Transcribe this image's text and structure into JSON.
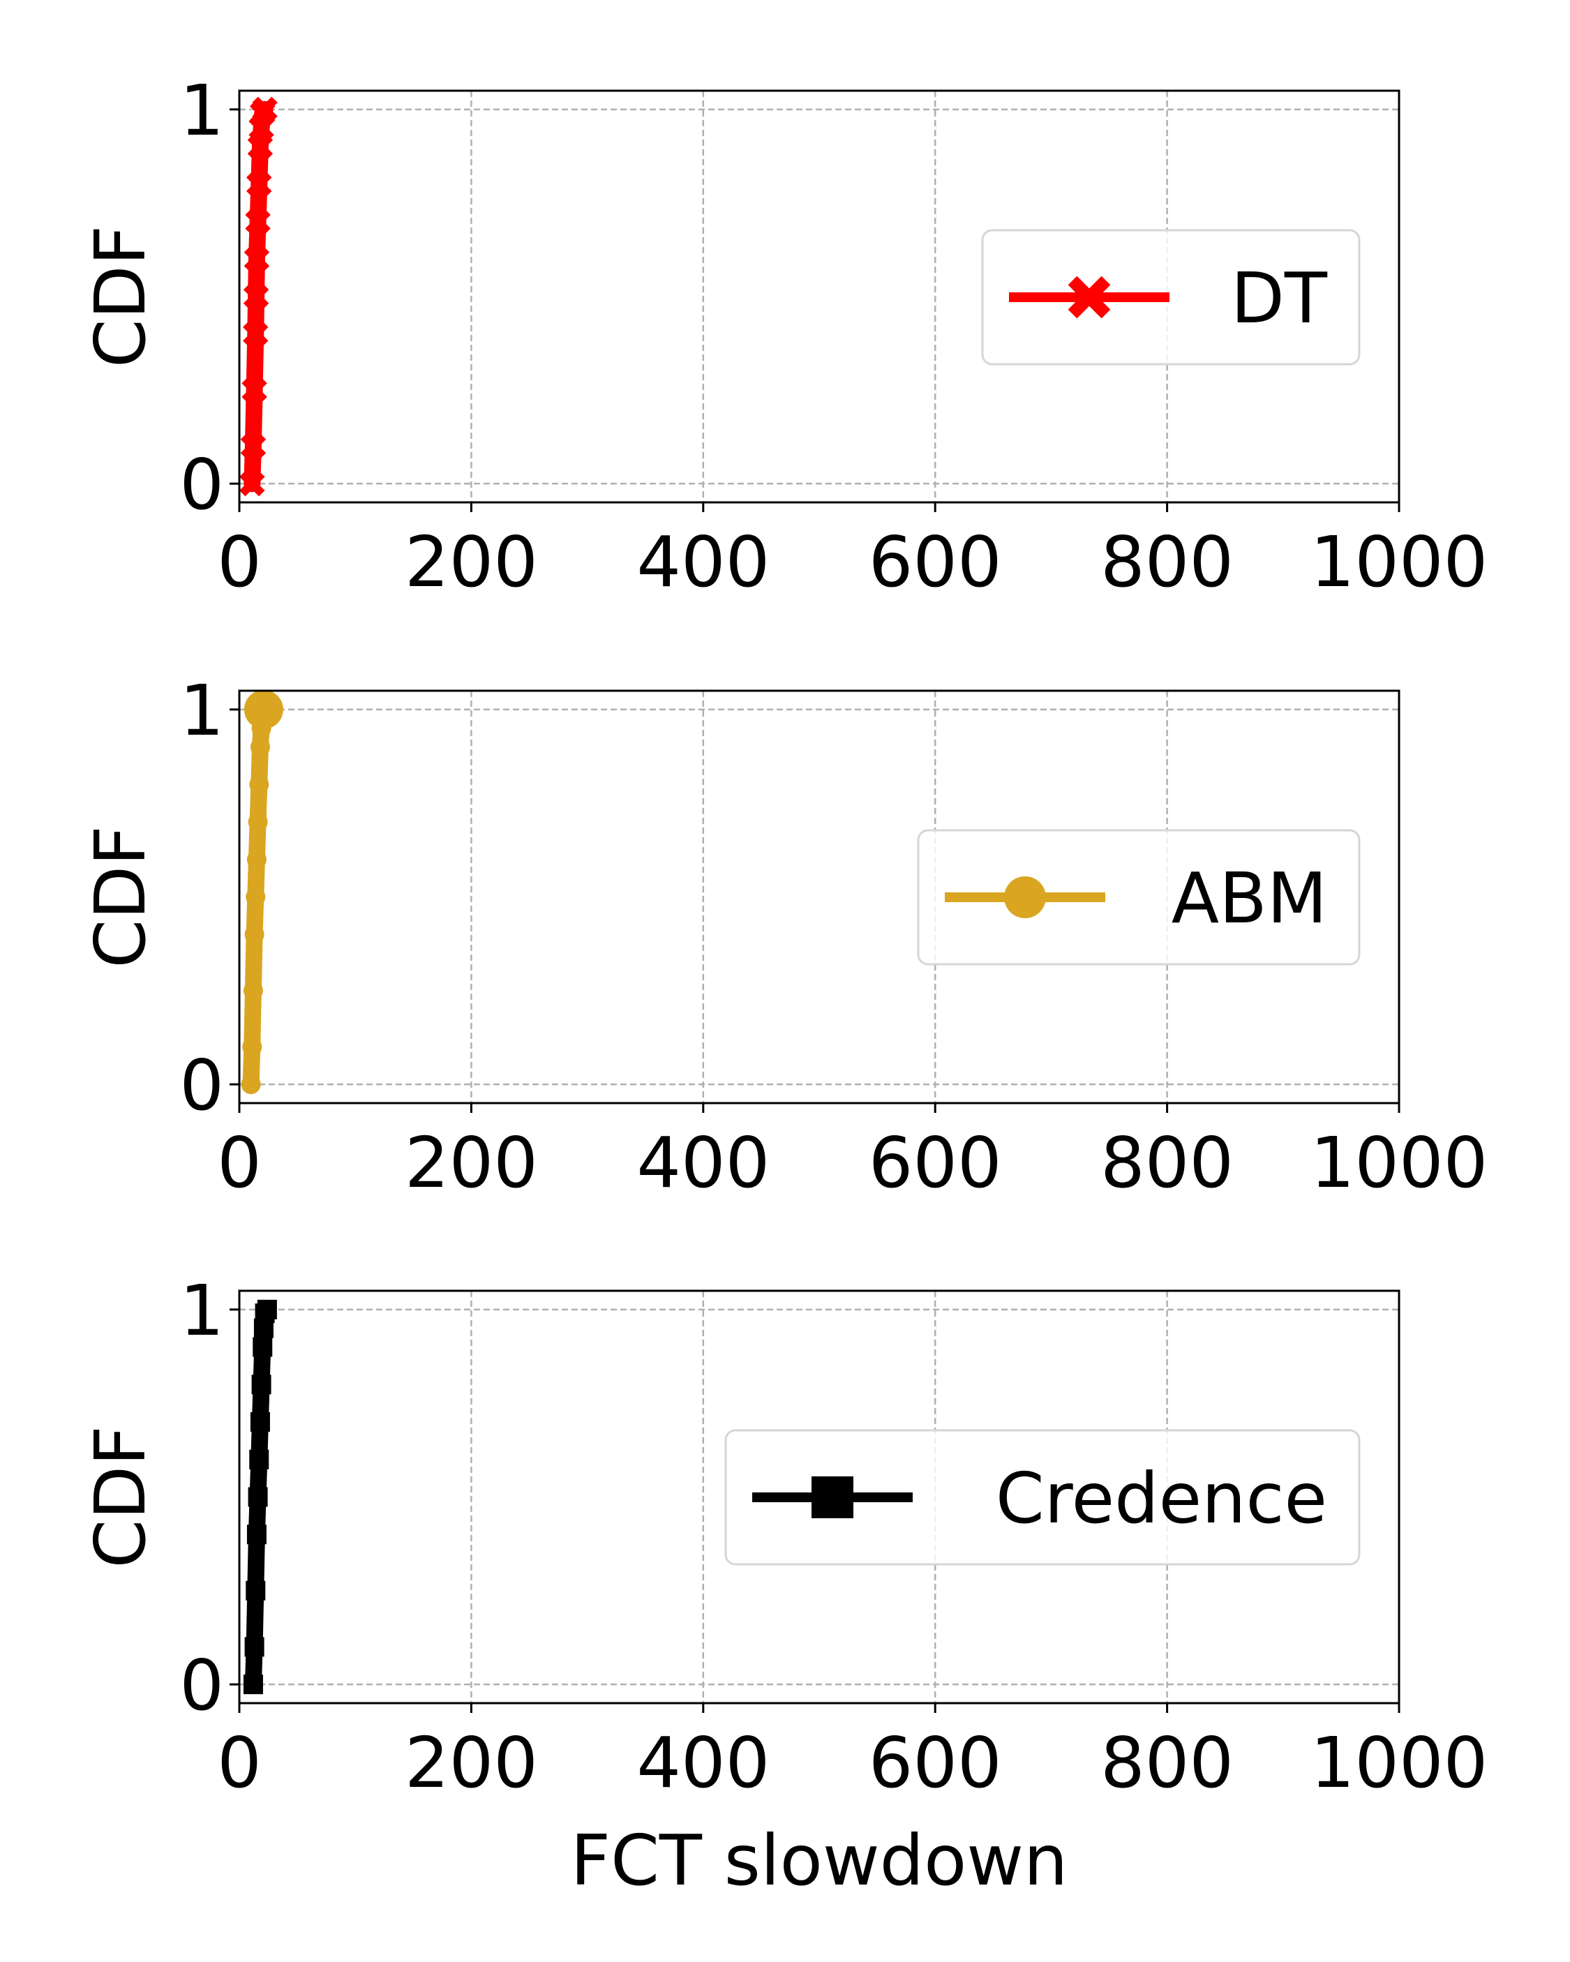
{
  "chart_data": [
    {
      "type": "line",
      "xlabel": "",
      "ylabel": "CDF",
      "xlim": [
        0,
        1000
      ],
      "ylim": [
        -0.05,
        1.05
      ],
      "xticks": [
        "0",
        "200",
        "400",
        "600",
        "800",
        "1000"
      ],
      "yticks": [
        "0",
        "1"
      ],
      "grid": true,
      "legend_placement": "center-right",
      "series": [
        {
          "name": "DT",
          "color": "#ff0000",
          "marker": "x-marker",
          "x": [
            11,
            12,
            13,
            14,
            14.5,
            15,
            16,
            17,
            18,
            19,
            20,
            22
          ],
          "y": [
            0,
            0.1,
            0.25,
            0.4,
            0.5,
            0.6,
            0.7,
            0.8,
            0.9,
            0.95,
            0.99,
            1
          ]
        }
      ]
    },
    {
      "type": "line",
      "xlabel": "",
      "ylabel": "CDF",
      "xlim": [
        0,
        1000
      ],
      "ylim": [
        -0.05,
        1.05
      ],
      "xticks": [
        "0",
        "200",
        "400",
        "600",
        "800",
        "1000"
      ],
      "yticks": [
        "0",
        "1"
      ],
      "grid": true,
      "legend_placement": "center-right",
      "series": [
        {
          "name": "ABM",
          "color": "#daa520",
          "marker": "circle-marker",
          "x": [
            10,
            11,
            12,
            13,
            14,
            15,
            16,
            17,
            18,
            19,
            20,
            21
          ],
          "y": [
            0,
            0.1,
            0.25,
            0.4,
            0.5,
            0.6,
            0.7,
            0.8,
            0.9,
            0.95,
            0.99,
            1
          ]
        }
      ]
    },
    {
      "type": "line",
      "xlabel": "FCT slowdown",
      "ylabel": "CDF",
      "xlim": [
        0,
        1000
      ],
      "ylim": [
        -0.05,
        1.05
      ],
      "xticks": [
        "0",
        "200",
        "400",
        "600",
        "800",
        "1000"
      ],
      "yticks": [
        "0",
        "1"
      ],
      "grid": true,
      "legend_placement": "center-right",
      "series": [
        {
          "name": "Credence",
          "color": "#000000",
          "marker": "square-marker",
          "x": [
            12,
            13,
            14,
            15,
            16,
            17,
            18,
            19,
            20,
            21,
            22,
            24
          ],
          "y": [
            0,
            0.1,
            0.25,
            0.4,
            0.5,
            0.6,
            0.7,
            0.8,
            0.9,
            0.95,
            0.99,
            1
          ]
        }
      ]
    }
  ]
}
